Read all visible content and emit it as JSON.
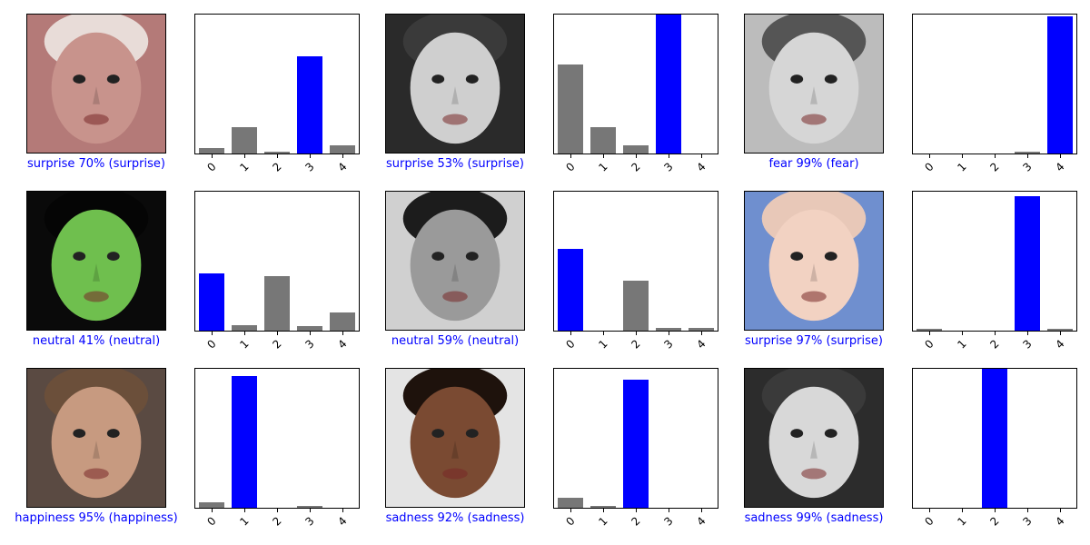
{
  "colors": {
    "predicted": "#0000ff",
    "other": "#777777",
    "caption": "#0000ff"
  },
  "panels": [
    {
      "caption": "surprise 70% (surprise)",
      "image": "baby-face-red-hat"
    },
    {
      "caption": "surprise 53% (surprise)",
      "image": "young-man-grayscale"
    },
    {
      "caption": "fear 99% (fear)",
      "image": "screaming-woman-grayscale"
    },
    {
      "caption": "neutral 41% (neutral)",
      "image": "woman-green-tint"
    },
    {
      "caption": "neutral 59% (neutral)",
      "image": "bearded-man-grayscale"
    },
    {
      "caption": "surprise 97% (surprise)",
      "image": "baby-blue-eyes-circle"
    },
    {
      "caption": "happiness 95% (happiness)",
      "image": "smiling-man"
    },
    {
      "caption": "sadness 92% (sadness)",
      "image": "woman-headache"
    },
    {
      "caption": "sadness 99% (sadness)",
      "image": "crying-child-grayscale"
    }
  ],
  "chart_data": [
    {
      "type": "bar",
      "categories": [
        "0",
        "1",
        "2",
        "3",
        "4"
      ],
      "values": [
        0.04,
        0.19,
        0.01,
        0.7,
        0.06
      ],
      "predicted_index": 3,
      "ylim": [
        0,
        1
      ]
    },
    {
      "type": "bar",
      "categories": [
        "0",
        "1",
        "2",
        "3",
        "4"
      ],
      "values": [
        0.34,
        0.1,
        0.03,
        0.53,
        0.0
      ],
      "predicted_index": 3,
      "ylim": [
        0,
        0.53
      ]
    },
    {
      "type": "bar",
      "categories": [
        "0",
        "1",
        "2",
        "3",
        "4"
      ],
      "values": [
        0.0,
        0.0,
        0.0,
        0.01,
        0.99
      ],
      "predicted_index": 4,
      "ylim": [
        0,
        1
      ]
    },
    {
      "type": "bar",
      "categories": [
        "0",
        "1",
        "2",
        "3",
        "4"
      ],
      "values": [
        0.41,
        0.04,
        0.39,
        0.03,
        0.13
      ],
      "predicted_index": 0,
      "ylim": [
        0,
        1
      ]
    },
    {
      "type": "bar",
      "categories": [
        "0",
        "1",
        "2",
        "3",
        "4"
      ],
      "values": [
        0.59,
        0.0,
        0.36,
        0.02,
        0.02
      ],
      "predicted_index": 0,
      "ylim": [
        0,
        1
      ]
    },
    {
      "type": "bar",
      "categories": [
        "0",
        "1",
        "2",
        "3",
        "4"
      ],
      "values": [
        0.01,
        0.0,
        0.0,
        0.97,
        0.01
      ],
      "predicted_index": 3,
      "ylim": [
        0,
        1
      ]
    },
    {
      "type": "bar",
      "categories": [
        "0",
        "1",
        "2",
        "3",
        "4"
      ],
      "values": [
        0.04,
        0.95,
        0.0,
        0.01,
        0.0
      ],
      "predicted_index": 1,
      "ylim": [
        0,
        1
      ]
    },
    {
      "type": "bar",
      "categories": [
        "0",
        "1",
        "2",
        "3",
        "4"
      ],
      "values": [
        0.07,
        0.01,
        0.92,
        0.0,
        0.0
      ],
      "predicted_index": 2,
      "ylim": [
        0,
        1
      ]
    },
    {
      "type": "bar",
      "categories": [
        "0",
        "1",
        "2",
        "3",
        "4"
      ],
      "values": [
        0.0,
        0.0,
        0.99,
        0.0,
        0.0
      ],
      "predicted_index": 2,
      "ylim": [
        0,
        0.99
      ]
    }
  ]
}
